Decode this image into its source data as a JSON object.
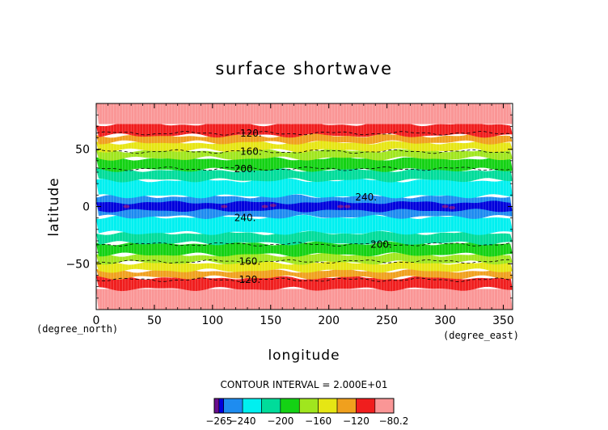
{
  "chart_data": {
    "type": "heatmap",
    "title": "surface shortwave",
    "xlabel": "longitude",
    "ylabel": "latitude",
    "x_units": "(degree_east)",
    "y_units": "(degree_north)",
    "xlim": [
      0,
      358
    ],
    "ylim": [
      -90,
      90
    ],
    "x_ticks": [
      "0",
      "50",
      "100",
      "150",
      "200",
      "250",
      "300",
      "350"
    ],
    "y_ticks": [
      "50",
      "0",
      "−50"
    ],
    "grid": false,
    "contour_interval_text": "CONTOUR INTERVAL = 2.000E+01",
    "colorbar": {
      "tick_labels": [
        "−265",
        "−240",
        "−200",
        "−160",
        "−120",
        "−80.2"
      ],
      "tick_values": [
        -265,
        -240,
        -200,
        -160,
        -120,
        -80.2
      ],
      "boundaries": [
        -270,
        -265,
        -260,
        -240,
        -220,
        -200,
        -180,
        -160,
        -140,
        -120,
        -100,
        -80.2
      ],
      "colors": [
        "#6a0d8e",
        "#0000dc",
        "#1e8cf0",
        "#00f0f0",
        "#00dc9a",
        "#14d214",
        "#a0e61e",
        "#e6e614",
        "#f0a01e",
        "#f01e1e",
        "#fa9696"
      ]
    },
    "bands": [
      {
        "lat_min": -90,
        "lat_max": -72,
        "color": "#fa9696"
      },
      {
        "lat_min": -72,
        "lat_max": -62,
        "color": "#f01e1e"
      },
      {
        "lat_min": -62,
        "lat_max": -56,
        "color": "#f0a01e"
      },
      {
        "lat_min": -56,
        "lat_max": -49,
        "color": "#e6e614"
      },
      {
        "lat_min": -49,
        "lat_max": -42,
        "color": "#a0e61e"
      },
      {
        "lat_min": -42,
        "lat_max": -32,
        "color": "#14d214"
      },
      {
        "lat_min": -32,
        "lat_max": -23,
        "color": "#00dc9a"
      },
      {
        "lat_min": -23,
        "lat_max": -9,
        "color": "#00f0f0"
      },
      {
        "lat_min": -9,
        "lat_max": 9,
        "color": "#1e8cf0"
      },
      {
        "lat_min": 9,
        "lat_max": 23,
        "color": "#00f0f0"
      },
      {
        "lat_min": 23,
        "lat_max": 32,
        "color": "#00dc9a"
      },
      {
        "lat_min": 32,
        "lat_max": 42,
        "color": "#14d214"
      },
      {
        "lat_min": 42,
        "lat_max": 49,
        "color": "#a0e61e"
      },
      {
        "lat_min": 49,
        "lat_max": 56,
        "color": "#e6e614"
      },
      {
        "lat_min": 56,
        "lat_max": 62,
        "color": "#f0a01e"
      },
      {
        "lat_min": 62,
        "lat_max": 72,
        "color": "#f01e1e"
      },
      {
        "lat_min": 72,
        "lat_max": 90,
        "color": "#fa9696"
      }
    ],
    "contour_lines": [
      {
        "lat": 64,
        "level": "120."
      },
      {
        "lat": 48,
        "level": "160."
      },
      {
        "lat": 33,
        "level": "200."
      },
      {
        "lat": -33,
        "level": "200."
      },
      {
        "lat": -48,
        "level": "160."
      },
      {
        "lat": -64,
        "level": "120."
      }
    ],
    "contour_labels": [
      {
        "text": "120.",
        "lon": 133,
        "lat": 64
      },
      {
        "text": "160.",
        "lon": 133,
        "lat": 48
      },
      {
        "text": "200.",
        "lon": 128,
        "lat": 33
      },
      {
        "text": "240.",
        "lon": 232,
        "lat": 8
      },
      {
        "text": "240.",
        "lon": 128,
        "lat": -10
      },
      {
        "text": "200.",
        "lon": 245,
        "lat": -33
      },
      {
        "text": "160.",
        "lon": 132,
        "lat": -48
      },
      {
        "text": "120.",
        "lon": 132,
        "lat": -64
      }
    ],
    "equatorial_core": {
      "lat_min": -3.5,
      "lat_max": 3.5,
      "color": "#0000dc"
    },
    "maxima_spots": [
      {
        "lon": 26,
        "lat": 0
      },
      {
        "lon": 110,
        "lat": 0
      },
      {
        "lon": 145,
        "lat": 0
      },
      {
        "lon": 152,
        "lat": 1
      },
      {
        "lon": 210,
        "lat": 0
      },
      {
        "lon": 216,
        "lat": 0
      },
      {
        "lon": 300,
        "lat": 0
      },
      {
        "lon": 306,
        "lat": -1
      }
    ]
  }
}
